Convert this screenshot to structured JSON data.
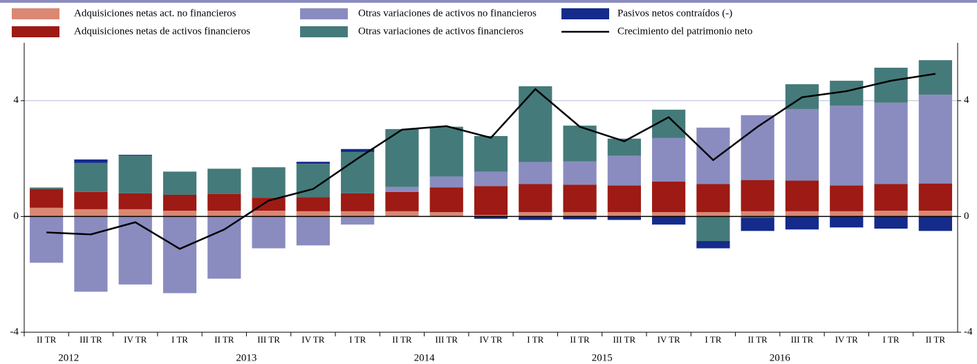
{
  "chart_data": {
    "type": "bar",
    "categories": [
      "II TR",
      "III TR",
      "IV TR",
      "I TR",
      "II TR",
      "III TR",
      "IV TR",
      "I TR",
      "II TR",
      "III TR",
      "IV TR",
      "I TR",
      "II TR",
      "III TR",
      "IV TR",
      "I TR",
      "II TR",
      "III TR",
      "IV TR",
      "I TR",
      "II TR"
    ],
    "year_groups": [
      {
        "label": "2012",
        "n": 3
      },
      {
        "label": "2013",
        "n": 4
      },
      {
        "label": "2014",
        "n": 4
      },
      {
        "label": "2015",
        "n": 4
      },
      {
        "label": "2016",
        "n": 4
      }
    ],
    "series": [
      {
        "name": "Adquisiciones netas act. no financieros",
        "color": "#d98873",
        "values": [
          0.3,
          0.25,
          0.25,
          0.2,
          0.2,
          0.2,
          0.18,
          0.18,
          0.18,
          0.15,
          0.05,
          0.15,
          0.15,
          0.15,
          0.15,
          0.15,
          0.18,
          0.18,
          0.18,
          0.2,
          0.2
        ]
      },
      {
        "name": "Adquisiciones netas de activos financieros",
        "color": "#9e1a14",
        "values": [
          0.65,
          0.6,
          0.55,
          0.55,
          0.58,
          0.45,
          0.49,
          0.62,
          0.67,
          0.85,
          1.0,
          0.97,
          0.95,
          0.92,
          1.06,
          0.97,
          1.08,
          1.06,
          0.89,
          0.92,
          0.94
        ]
      },
      {
        "name": "Otras variaciones de activos no financieros",
        "color": "#8a8cc0",
        "values": [
          -1.6,
          -2.6,
          -2.35,
          -2.65,
          -2.15,
          -1.1,
          -1.0,
          -0.28,
          0.17,
          0.38,
          0.5,
          0.76,
          0.8,
          1.03,
          1.5,
          1.95,
          2.24,
          2.47,
          2.76,
          2.81,
          3.07
        ]
      },
      {
        "name": "Otras variaciones de activos financieros",
        "color": "#457a7a",
        "values": [
          0.05,
          1.0,
          1.3,
          0.8,
          0.87,
          1.05,
          1.15,
          1.43,
          2.0,
          1.72,
          1.23,
          2.62,
          1.24,
          0.59,
          0.98,
          -0.85,
          -0.05,
          0.86,
          0.86,
          1.21,
          1.19
        ]
      },
      {
        "name": "Pasivos netos contraídos (-)",
        "color": "#142b8c",
        "values": [
          0,
          0.12,
          0.03,
          0,
          0,
          0,
          0.07,
          0.1,
          0,
          0,
          -0.08,
          -0.12,
          -0.1,
          -0.12,
          -0.28,
          -0.25,
          -0.45,
          -0.45,
          -0.38,
          -0.42,
          -0.5
        ]
      },
      {
        "name": "Crecimiento del patrimonio neto",
        "color": "#000000",
        "type": "line",
        "values": [
          -0.55,
          -0.62,
          -0.2,
          -1.12,
          -0.45,
          0.55,
          0.95,
          2.0,
          3.0,
          3.12,
          2.72,
          4.4,
          3.1,
          2.6,
          3.43,
          1.95,
          3.1,
          4.12,
          4.33,
          4.69,
          4.93
        ]
      }
    ],
    "ylim": [
      -4,
      6
    ],
    "yticks": [
      -4,
      0,
      4
    ],
    "y2lim": [
      -4,
      6
    ],
    "y2ticks": [
      -4,
      0,
      4
    ],
    "grid": true
  }
}
